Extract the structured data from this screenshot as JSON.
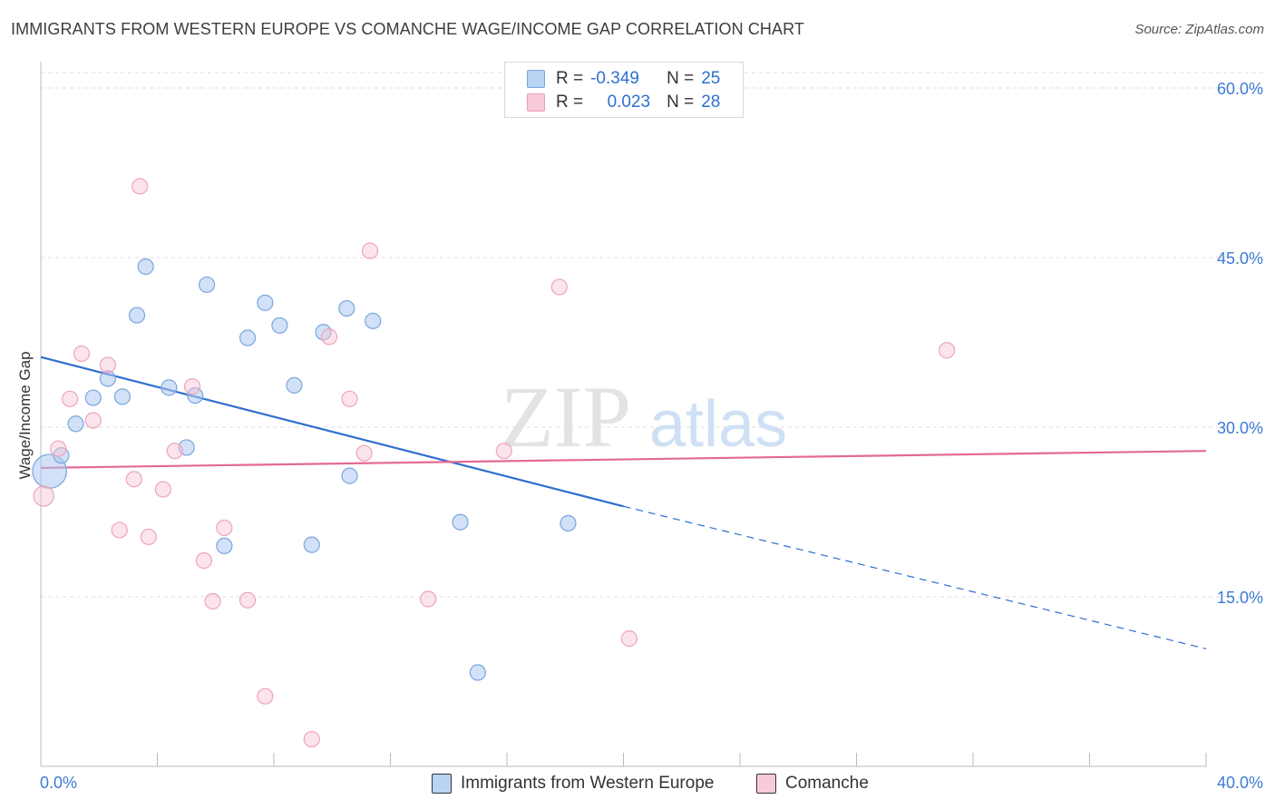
{
  "title": "IMMIGRANTS FROM WESTERN EUROPE VS COMANCHE WAGE/INCOME GAP CORRELATION CHART",
  "source": "Source: ZipAtlas.com",
  "watermark": {
    "zip": "ZIP",
    "atlas": "atlas"
  },
  "legend": {
    "rows": [
      {
        "r_label": "R =",
        "r_value": "-0.349",
        "n_label": "N =",
        "n_value": "25"
      },
      {
        "r_label": "R =",
        "r_value": "0.023",
        "n_label": "N =",
        "n_value": "28"
      }
    ]
  },
  "bottom_legend": [
    "Immigrants from Western Europe",
    "Comanche"
  ],
  "chart_data": {
    "type": "scatter",
    "title": "IMMIGRANTS FROM WESTERN EUROPE VS COMANCHE WAGE/INCOME GAP CORRELATION CHART",
    "xlabel": "",
    "ylabel": "Wage/Income Gap",
    "xlim": [
      0,
      40
    ],
    "ylim": [
      0,
      60
    ],
    "x_tick_labels": [
      "0.0%",
      "40.0%"
    ],
    "y_ticks": [
      15,
      30,
      45,
      60
    ],
    "y_tick_labels": [
      "15.0%",
      "30.0%",
      "45.0%",
      "60.0%"
    ],
    "grid": true,
    "colors": {
      "blue": "#8fb8ea",
      "blue_line": "#2f6fcf",
      "pink": "#f3a9c0",
      "pink_line": "#e46a93"
    },
    "series": [
      {
        "name": "Immigrants from Western Europe",
        "color": "blue",
        "points": [
          [
            0.3,
            26.1,
            2.2
          ],
          [
            0.7,
            27.5,
            1
          ],
          [
            1.2,
            30.3,
            1
          ],
          [
            1.8,
            32.6,
            1
          ],
          [
            2.3,
            34.3,
            1
          ],
          [
            2.8,
            32.7,
            1
          ],
          [
            3.3,
            39.9,
            1
          ],
          [
            3.6,
            44.2,
            1
          ],
          [
            4.4,
            33.5,
            1
          ],
          [
            5.0,
            28.2,
            1
          ],
          [
            5.3,
            32.8,
            1
          ],
          [
            5.7,
            42.6,
            1
          ],
          [
            6.3,
            19.5,
            1
          ],
          [
            7.1,
            37.9,
            1
          ],
          [
            7.7,
            41.0,
            1
          ],
          [
            8.2,
            39.0,
            1
          ],
          [
            8.7,
            33.7,
            1
          ],
          [
            9.3,
            19.6,
            1
          ],
          [
            9.7,
            38.4,
            1
          ],
          [
            10.5,
            40.5,
            1
          ],
          [
            10.6,
            25.7,
            1
          ],
          [
            11.4,
            39.4,
            1
          ],
          [
            14.4,
            21.6,
            1
          ],
          [
            15.0,
            8.3,
            1
          ],
          [
            18.1,
            21.5,
            1
          ]
        ],
        "trend": {
          "x0": 0,
          "y0": 36.2,
          "x1": 20.0,
          "y1": 23.0,
          "dash_x1": 40,
          "dash_y1": 10.4
        }
      },
      {
        "name": "Comanche",
        "color": "pink",
        "points": [
          [
            0.1,
            23.9,
            1.3
          ],
          [
            0.6,
            28.1,
            1
          ],
          [
            1.0,
            32.5,
            1
          ],
          [
            1.4,
            36.5,
            1
          ],
          [
            1.8,
            30.6,
            1
          ],
          [
            2.3,
            35.5,
            1
          ],
          [
            2.7,
            20.9,
            1
          ],
          [
            3.2,
            25.4,
            1
          ],
          [
            3.4,
            51.3,
            1
          ],
          [
            3.7,
            20.3,
            1
          ],
          [
            4.2,
            24.5,
            1
          ],
          [
            4.6,
            27.9,
            1
          ],
          [
            5.2,
            33.6,
            1
          ],
          [
            5.6,
            18.2,
            1
          ],
          [
            5.9,
            14.6,
            1
          ],
          [
            6.3,
            21.1,
            1
          ],
          [
            7.1,
            14.7,
            1
          ],
          [
            7.7,
            6.2,
            1
          ],
          [
            9.3,
            2.4,
            1
          ],
          [
            9.9,
            38.0,
            1
          ],
          [
            10.6,
            32.5,
            1
          ],
          [
            11.1,
            27.7,
            1
          ],
          [
            11.3,
            45.6,
            1
          ],
          [
            13.3,
            14.8,
            1
          ],
          [
            15.9,
            27.9,
            1
          ],
          [
            17.8,
            42.4,
            1
          ],
          [
            20.2,
            11.3,
            1
          ],
          [
            31.1,
            36.8,
            1
          ]
        ],
        "trend": {
          "x0": 0,
          "y0": 26.4,
          "x1": 40,
          "y1": 27.9
        }
      }
    ]
  }
}
